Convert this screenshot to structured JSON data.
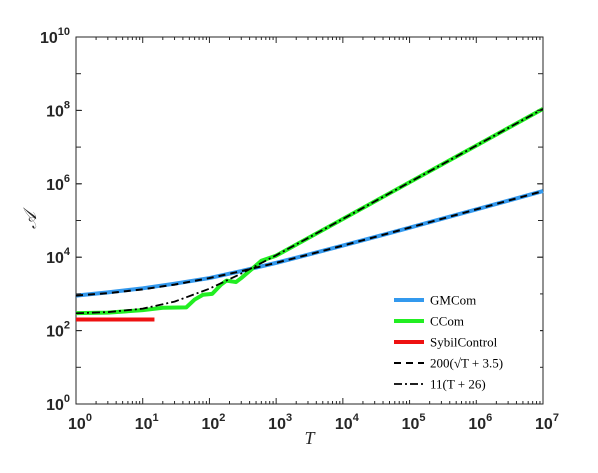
{
  "chart_data": {
    "type": "line",
    "xlabel": "T",
    "ylabel": "𝒜",
    "xscale": "log",
    "yscale": "log",
    "xlim": [
      1,
      10000000
    ],
    "ylim": [
      1,
      10000000000
    ],
    "x_ticks": [
      {
        "base": "10",
        "exp": "0",
        "value": 1
      },
      {
        "base": "10",
        "exp": "1",
        "value": 10
      },
      {
        "base": "10",
        "exp": "2",
        "value": 100
      },
      {
        "base": "10",
        "exp": "3",
        "value": 1000
      },
      {
        "base": "10",
        "exp": "4",
        "value": 10000
      },
      {
        "base": "10",
        "exp": "5",
        "value": 100000
      },
      {
        "base": "10",
        "exp": "6",
        "value": 1000000
      },
      {
        "base": "10",
        "exp": "7",
        "value": 10000000
      }
    ],
    "y_ticks": [
      {
        "base": "10",
        "exp": "0",
        "value": 1
      },
      {
        "base": "10",
        "exp": "2",
        "value": 100
      },
      {
        "base": "10",
        "exp": "4",
        "value": 10000
      },
      {
        "base": "10",
        "exp": "6",
        "value": 1000000
      },
      {
        "base": "10",
        "exp": "8",
        "value": 100000000
      },
      {
        "base": "10",
        "exp": "10",
        "value": 10000000000
      }
    ],
    "grid": false,
    "legend_position": "bottom-right",
    "series": [
      {
        "name": "GMCom",
        "color": "#3399ee",
        "style": "solid",
        "x": [
          1,
          3,
          10,
          30,
          100,
          300,
          1000,
          3000,
          10000,
          30000,
          100000,
          300000,
          1000000,
          3000000,
          10000000
        ],
        "y": [
          900,
          1100,
          1420,
          1900,
          2700,
          4200,
          7000,
          11700,
          20700,
          35300,
          63600,
          110000,
          200000,
          347000,
          633000
        ]
      },
      {
        "name": "CCom",
        "color": "#22ee22",
        "style": "solid",
        "x": [
          1,
          3,
          10,
          20,
          45,
          60,
          80,
          110,
          150,
          180,
          250,
          300,
          400,
          600,
          1000,
          10000,
          100000,
          1000000,
          10000000
        ],
        "y": [
          300,
          310,
          360,
          420,
          430,
          700,
          950,
          1000,
          1800,
          2300,
          2100,
          2700,
          4200,
          8000,
          11000,
          110000,
          1100000,
          11000000,
          110000000
        ]
      },
      {
        "name": "SybilControl",
        "color": "#ee1111",
        "style": "solid",
        "x": [
          1,
          15
        ],
        "y": [
          200,
          200
        ]
      },
      {
        "name": "200(√T + 3.5)",
        "color": "#000000",
        "style": "dashed",
        "x": [
          1,
          3,
          10,
          30,
          100,
          300,
          1000,
          3000,
          10000,
          30000,
          100000,
          300000,
          1000000,
          3000000,
          10000000
        ],
        "y": [
          900,
          1046,
          1332,
          1795,
          2700,
          4164,
          7024,
          11654,
          20700,
          35341,
          63946,
          110241,
          200700,
          347110,
          633156
        ]
      },
      {
        "name": "11(T + 26)",
        "color": "#000000",
        "style": "dashdot",
        "x": [
          1,
          3,
          10,
          30,
          100,
          300,
          1000,
          3000,
          10000,
          30000,
          100000,
          300000,
          1000000,
          3000000,
          10000000
        ],
        "y": [
          297,
          319,
          396,
          616,
          1386,
          3586,
          11286,
          33286,
          110286,
          330286,
          1100286,
          3300286,
          11000286,
          33000286,
          110000286
        ]
      }
    ]
  }
}
